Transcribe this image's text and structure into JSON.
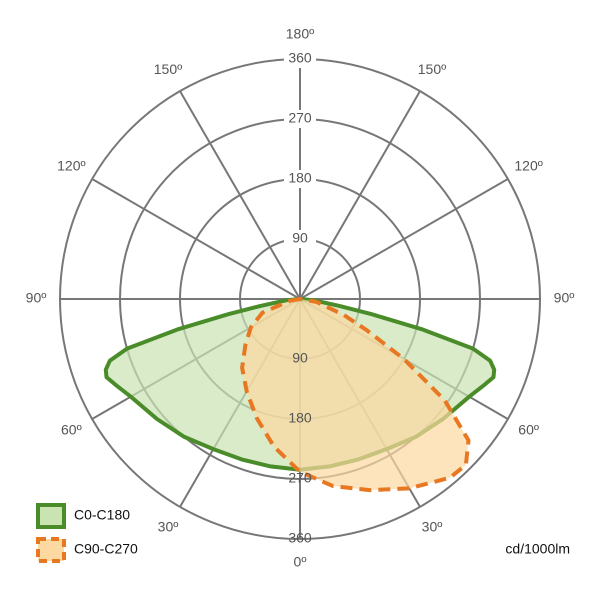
{
  "chart_data": {
    "type": "polar",
    "xticks": [
      {
        "value": 0,
        "label": "0º"
      },
      {
        "value": 30,
        "label": "30º"
      },
      {
        "value": 60,
        "label": "60º"
      },
      {
        "value": 90,
        "label": "90º"
      },
      {
        "value": 120,
        "label": "120º"
      },
      {
        "value": 150,
        "label": "150º"
      },
      {
        "value": 180,
        "label": "180º"
      }
    ],
    "ylim": [
      0,
      360
    ],
    "yticks": [
      90,
      180,
      270,
      360
    ],
    "unit_label": "cd/1000lm",
    "series": [
      {
        "name": "C0-C180",
        "color": "#4a8c2a",
        "fill": "#c9e3b1",
        "dashed": false,
        "x": [
          -90,
          -85,
          -80,
          -78,
          -76,
          -74,
          -72,
          -70,
          -68,
          -65,
          -60,
          -50,
          -40,
          -30,
          -20,
          -10,
          0,
          10,
          20,
          30,
          40,
          50,
          60,
          65,
          68,
          70,
          72,
          74,
          76,
          78,
          80,
          85,
          90
        ],
        "values": [
          0,
          20,
          60,
          110,
          190,
          270,
          300,
          310,
          313,
          305,
          293,
          280,
          270,
          260,
          256,
          255,
          256,
          255,
          256,
          260,
          270,
          280,
          293,
          305,
          313,
          310,
          300,
          270,
          190,
          110,
          60,
          20,
          0
        ]
      },
      {
        "name": "C90-C270",
        "color": "#e87722",
        "fill": "#fcd9a0",
        "dashed": true,
        "x": [
          -90,
          -80,
          -70,
          -60,
          -50,
          -40,
          -30,
          -20,
          -10,
          0,
          10,
          20,
          30,
          40,
          45,
          50,
          55,
          60,
          65,
          70,
          80,
          90
        ],
        "values": [
          0,
          15,
          60,
          85,
          107,
          135,
          160,
          190,
          225,
          259,
          285,
          305,
          328,
          350,
          352,
          330,
          265,
          180,
          110,
          70,
          25,
          0
        ]
      }
    ]
  }
}
